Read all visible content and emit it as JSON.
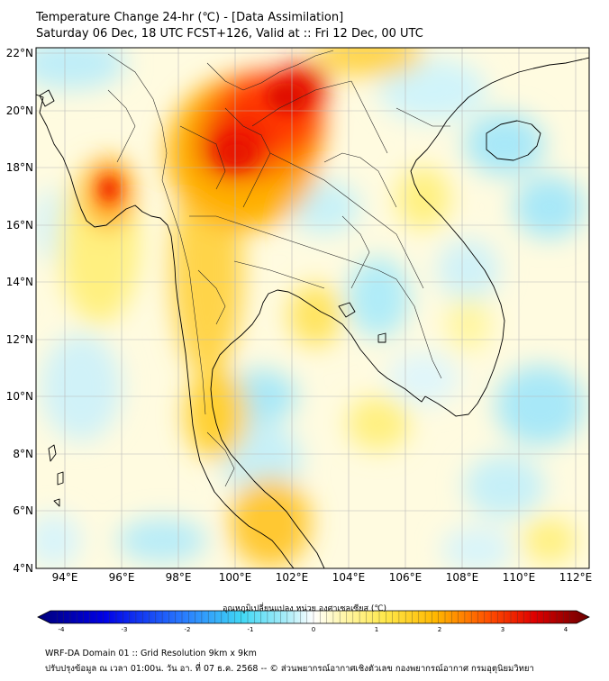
{
  "header": {
    "title_line1": "Temperature Change 24-hr (℃) - [Data Assimilation]",
    "title_line2": "Saturday 06 Dec, 18 UTC FCST+126, Valid at :: Fri 12 Dec, 00 UTC"
  },
  "map": {
    "lon_range": [
      93,
      112.5
    ],
    "lat_range": [
      4,
      22.2
    ],
    "lon_ticks": [
      "94°E",
      "96°E",
      "98°E",
      "100°E",
      "102°E",
      "104°E",
      "106°E",
      "108°E",
      "110°E",
      "112°E"
    ],
    "lat_ticks": [
      "4°N",
      "6°N",
      "8°N",
      "10°N",
      "12°N",
      "14°N",
      "16°N",
      "18°N",
      "20°N",
      "22°N"
    ],
    "field_hotspots": [
      {
        "region": "northern Thailand / Shan",
        "lon": 100.6,
        "lat": 19.5,
        "value": 3.3
      },
      {
        "region": "Shan north",
        "lon": 101.8,
        "lat": 20.6,
        "value": 3.0
      },
      {
        "region": "west of Myanmar coast",
        "lon": 95.6,
        "lat": 17.3,
        "value": 3.0
      },
      {
        "region": "Gulf of Thailand",
        "lon": 100.0,
        "lat": 9.9,
        "value": -1.2
      },
      {
        "region": "South China Sea east",
        "lon": 110.5,
        "lat": 9.5,
        "value": -1.3
      },
      {
        "region": "Hainan / Gulf of Tonkin",
        "lon": 109.3,
        "lat": 18.6,
        "value": -1.0
      }
    ]
  },
  "colorbar": {
    "label": "อุณหภูมิเปลี่ยนแปลง หน่วย องศาเซลเซียส (℃)",
    "min": -4,
    "max": 4,
    "ticks": [
      "-4",
      "-3",
      "-2",
      "-1",
      "0",
      "1",
      "2",
      "3",
      "4"
    ]
  },
  "footer": {
    "line1": "WRF-DA Domain 01 :: Grid Resolution 9km x 9km",
    "line2": "ปรับปรุงข้อมูล ณ เวลา 01:00น. วัน อา. ที่ 07 ธ.ค. 2568 -- © ส่วนพยากรณ์อากาศเชิงตัวเลข กองพยากรณ์อากาศ กรมอุตุนิยมวิทยา"
  }
}
